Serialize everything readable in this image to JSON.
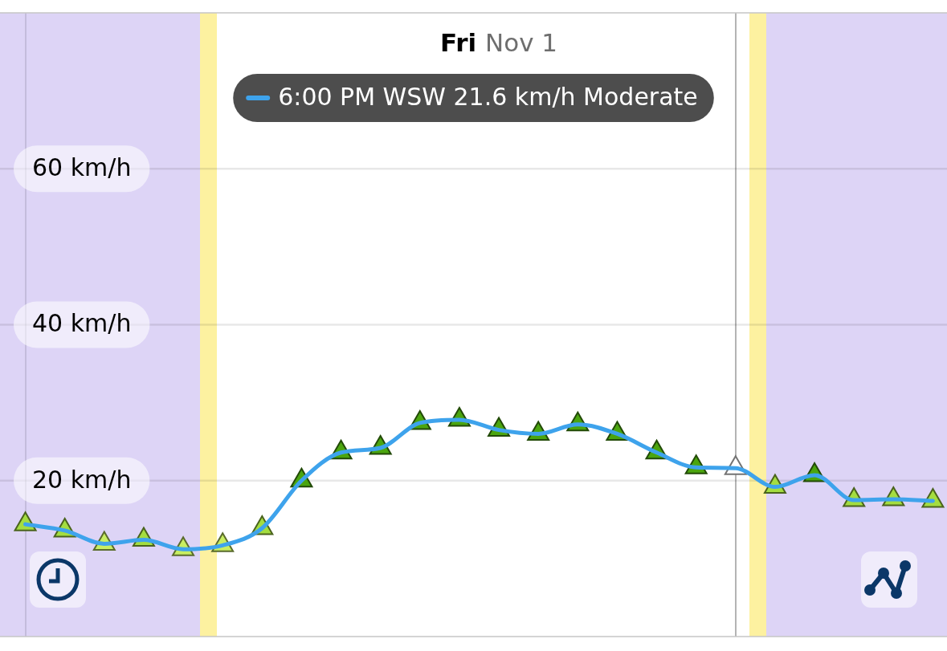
{
  "chart_data": {
    "type": "line",
    "title": "Fri Nov 1",
    "categories": [
      null,
      null,
      null,
      null,
      null,
      null,
      null,
      null,
      null,
      null,
      null,
      null,
      null,
      null,
      null,
      null,
      null,
      null,
      null,
      null,
      null,
      null,
      null,
      null
    ],
    "series": [
      {
        "color": "#3ea3ec",
        "values": [
          14.4,
          13.6,
          11.9,
          12.4,
          11.2,
          11.7,
          13.9,
          20.0,
          23.6,
          24.2,
          27.4,
          27.8,
          26.5,
          26.0,
          27.2,
          26.0,
          23.6,
          21.7,
          21.6,
          19.2,
          20.7,
          17.5,
          17.6,
          17.4
        ],
        "colors": [
          "#a4dd40",
          "#a4dd40",
          "#c8ee62",
          "#a4dd40",
          "#c8ee62",
          "#c8ee62",
          "#a4dd40",
          "#4ba50f",
          "#4ba50f",
          "#4ba50f",
          "#4ba50f",
          "#4ba50f",
          "#4ba50f",
          "#4ba50f",
          "#4ba50f",
          "#4ba50f",
          "#4ba50f",
          "#4ba50f",
          "#ffffff",
          "#a4dd40",
          "#4ba50f",
          "#a4dd40",
          "#a4dd40",
          "#a4dd40"
        ]
      }
    ],
    "ylim": [
      0,
      80
    ],
    "yticks": [
      {
        "value": 20,
        "label": "20 km/h"
      },
      {
        "value": 40,
        "label": "40 km/h"
      },
      {
        "value": 60,
        "label": "60 km/h"
      }
    ],
    "tick_labels": "y",
    "grid": "y",
    "marker": "triangle",
    "annotations": [
      "6:00 PM WSW 21.6 km/h Moderate"
    ]
  }
}
